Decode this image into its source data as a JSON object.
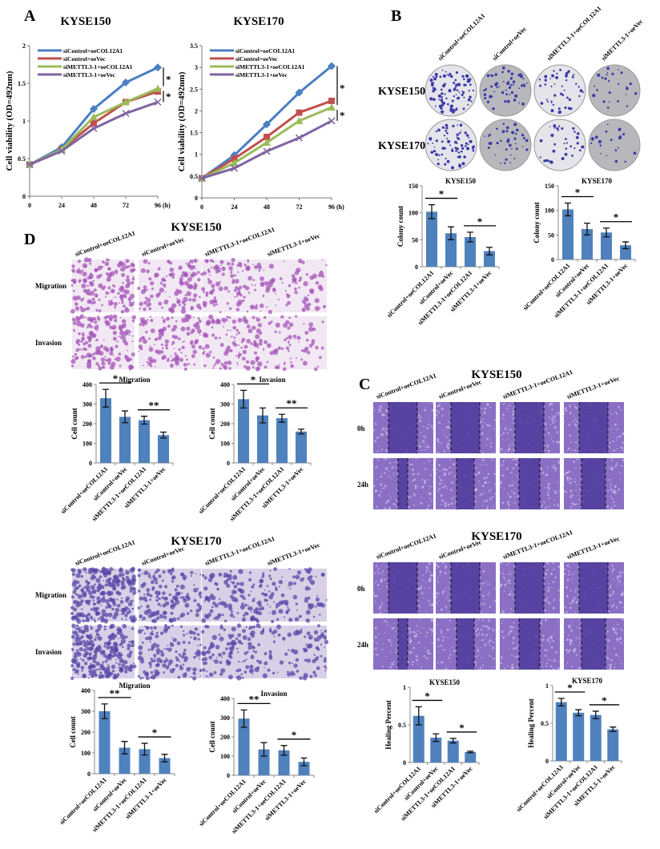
{
  "panels": {
    "A": "A",
    "B": "B",
    "C": "C",
    "D": "D"
  },
  "groups": [
    "siControl+oeCOL12A1",
    "siControl+oeVec",
    "siMETTL3-1+oeCOL12A1",
    "siMETTL3-1+oeVec"
  ],
  "colony": {
    "rows": [
      "KYSE150",
      "KYSE170"
    ]
  },
  "transwell": [
    {
      "title": "KYSE150",
      "rows": [
        "Migration",
        "Invasion"
      ]
    },
    {
      "title": "KYSE170",
      "rows": [
        "Migration",
        "Invasion"
      ]
    }
  ],
  "wound": [
    {
      "title": "KYSE150",
      "rows": [
        "0h",
        "24h"
      ]
    },
    {
      "title": "KYSE170",
      "rows": [
        "0h",
        "24h"
      ]
    }
  ],
  "chart_data": [
    {
      "type": "line",
      "title": "KYSE150",
      "ylabel": "Cell viability (OD=492nm)",
      "xunit": "(h)",
      "x": [
        0,
        24,
        48,
        72,
        96
      ],
      "ylim": [
        0,
        2
      ],
      "yticks": [
        "0",
        "0.5",
        "1",
        "1.5",
        "2"
      ],
      "legend": "top-left",
      "grid": false,
      "significance": [
        "*",
        "*"
      ],
      "series": [
        {
          "name": "siControl+oeCOL12A1",
          "color": "#4a7fc1",
          "marker": "diamond",
          "values": [
            0.42,
            0.65,
            1.16,
            1.51,
            1.71
          ]
        },
        {
          "name": "siControl+oeVec",
          "color": "#c0504d",
          "marker": "square",
          "values": [
            0.42,
            0.62,
            0.97,
            1.25,
            1.39
          ]
        },
        {
          "name": "siMETTL3-1+oeCOL12A1",
          "color": "#9bbb59",
          "marker": "triangle",
          "values": [
            0.42,
            0.62,
            1.05,
            1.25,
            1.43
          ]
        },
        {
          "name": "siMETTL3-1+oeVec",
          "color": "#8064a2",
          "marker": "x",
          "values": [
            0.42,
            0.6,
            0.9,
            1.1,
            1.25
          ]
        }
      ]
    },
    {
      "type": "line",
      "title": "KYSE170",
      "ylabel": "Cell viability (OD=492nm)",
      "xunit": "(h)",
      "x": [
        0,
        24,
        48,
        72,
        96
      ],
      "ylim": [
        0,
        3.5
      ],
      "yticks": [
        "0",
        "0.5",
        "1",
        "1.5",
        "2",
        "2.5",
        "3",
        "3.5"
      ],
      "legend": "top-left",
      "grid": false,
      "significance": [
        "*",
        "*"
      ],
      "series": [
        {
          "name": "siControl+oeCOL12A1",
          "color": "#4a7fc1",
          "marker": "diamond",
          "values": [
            0.45,
            0.98,
            1.69,
            2.42,
            3.03
          ]
        },
        {
          "name": "siControl+oeVec",
          "color": "#c0504d",
          "marker": "square",
          "values": [
            0.45,
            0.9,
            1.4,
            1.96,
            2.23
          ]
        },
        {
          "name": "siMETTL3-1+oeCOL12A1",
          "color": "#9bbb59",
          "marker": "triangle",
          "values": [
            0.45,
            0.8,
            1.27,
            1.77,
            2.08
          ]
        },
        {
          "name": "siMETTL3-1+oeVec",
          "color": "#8064a2",
          "marker": "x",
          "values": [
            0.45,
            0.68,
            1.07,
            1.38,
            1.77
          ]
        }
      ]
    },
    {
      "type": "bar",
      "title": "KYSE150",
      "ylabel": "Colony count",
      "ylim": [
        0,
        150
      ],
      "yticks": [
        "0",
        "50",
        "100",
        "150"
      ],
      "categories": [
        "siControl+oeCOL12A1",
        "siControl+oeVec",
        "siMETTL3-1+oeCOL12A1",
        "siMETTL3-1+oeVec"
      ],
      "values": [
        102,
        62,
        55,
        29
      ],
      "errors": [
        13,
        12,
        9,
        7
      ],
      "significance": [
        "*",
        "*"
      ],
      "color": "#4f81bd"
    },
    {
      "type": "bar",
      "title": "KYSE170",
      "ylabel": "Colony count",
      "ylim": [
        0,
        150
      ],
      "yticks": [
        "0",
        "50",
        "100",
        "150"
      ],
      "categories": [
        "siControl+oeCOL12A1",
        "siControl+oeVec",
        "siMETTL3-1+oeCOL12A1",
        "siMETTL3-1+oeVec"
      ],
      "values": [
        102,
        62,
        55,
        29
      ],
      "errors": [
        13,
        12,
        9,
        7
      ],
      "significance": [
        "*",
        "*"
      ],
      "color": "#4f81bd"
    },
    {
      "type": "bar",
      "title": "Migration",
      "ylabel": "Cell count",
      "ylim": [
        0,
        400
      ],
      "yticks": [
        "0",
        "100",
        "200",
        "300",
        "400"
      ],
      "categories": [
        "siControl+oeCOL12A1",
        "siControl+oeVec",
        "siMETTL3-1+oeCOL12A1",
        "siMETTL3-1+oeVec"
      ],
      "values": [
        330,
        235,
        218,
        142
      ],
      "errors": [
        45,
        30,
        20,
        15
      ],
      "significance": [
        "*",
        "**"
      ],
      "color": "#4f81bd"
    },
    {
      "type": "bar",
      "title": "Invasion",
      "ylabel": "Cell count",
      "ylim": [
        0,
        400
      ],
      "yticks": [
        "0",
        "100",
        "200",
        "300",
        "400"
      ],
      "categories": [
        "siControl+oeCOL12A1",
        "siControl+oeVec",
        "siMETTL3-1+oeCOL12A1",
        "siMETTL3-1+oeVec"
      ],
      "values": [
        325,
        242,
        228,
        160
      ],
      "errors": [
        45,
        38,
        20,
        12
      ],
      "significance": [
        "*",
        "**"
      ],
      "color": "#4f81bd"
    },
    {
      "type": "bar",
      "title": "Migration",
      "ylabel": "Cell count",
      "ylim": [
        0,
        400
      ],
      "yticks": [
        "0",
        "100",
        "200",
        "300",
        "400"
      ],
      "categories": [
        "siControl+oeCOL12A1",
        "siControl+oeVec",
        "siMETTL3-1+oeCOL12A1",
        "siMETTL3-1+oeVec"
      ],
      "values": [
        300,
        125,
        118,
        75
      ],
      "errors": [
        35,
        30,
        28,
        18
      ],
      "significance": [
        "**",
        "*"
      ],
      "color": "#4f81bd"
    },
    {
      "type": "bar",
      "title": "Invasion",
      "ylabel": "Cell count",
      "ylim": [
        0,
        400
      ],
      "yticks": [
        "0",
        "100",
        "200",
        "300",
        "400"
      ],
      "categories": [
        "siControl+oeCOL12A1",
        "siControl+oeVec",
        "siMETTL3-1+oeCOL12A1",
        "siMETTL3-1+oeVec"
      ],
      "values": [
        295,
        135,
        130,
        70
      ],
      "errors": [
        45,
        35,
        25,
        20
      ],
      "significance": [
        "**",
        "*"
      ],
      "color": "#4f81bd"
    },
    {
      "type": "bar",
      "title": "KYSE150",
      "ylabel": "Healing Percent",
      "ylim": [
        0,
        1
      ],
      "yticks": [
        "0",
        "0.5",
        "1"
      ],
      "categories": [
        "siControl+oeCOL12A1",
        "siControl+oeVec",
        "siMETTL3-1+oeCOL12A1",
        "siMETTL3-1+oeVec"
      ],
      "values": [
        0.62,
        0.33,
        0.29,
        0.14
      ],
      "errors": [
        0.12,
        0.05,
        0.03,
        0.01
      ],
      "significance": [
        "*",
        "*"
      ],
      "color": "#4f81bd"
    },
    {
      "type": "bar",
      "title": "KYSE170",
      "ylabel": "Healing Percent",
      "ylim": [
        0,
        1
      ],
      "yticks": [
        "0",
        "0.5",
        "1"
      ],
      "categories": [
        "siControl+oeCOL12A1",
        "siControl+oeVec",
        "siMETTL3-1+oeCOL12A1",
        "siMETTL3-1+oeVec"
      ],
      "values": [
        0.78,
        0.64,
        0.61,
        0.42
      ],
      "errors": [
        0.05,
        0.04,
        0.05,
        0.03
      ],
      "significance": [
        "*",
        "*"
      ],
      "color": "#4f81bd"
    }
  ]
}
